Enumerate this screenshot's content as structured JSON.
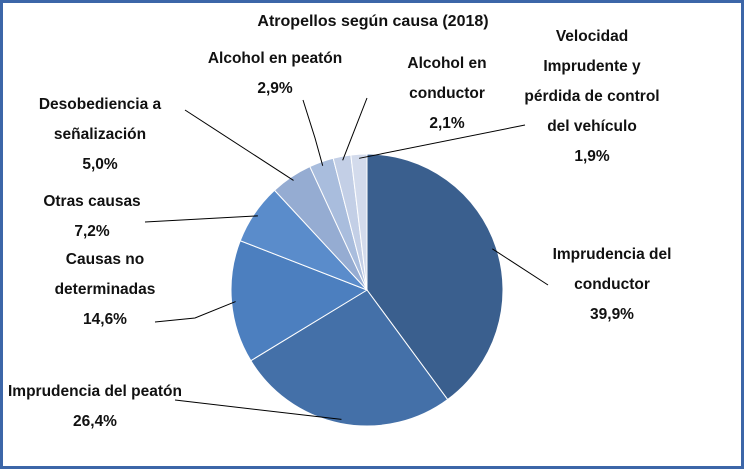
{
  "chart_data": {
    "type": "pie",
    "title": "Atropellos según causa (2018)",
    "categories": [
      "Imprudencia del conductor",
      "Imprudencia del peatón",
      "Causas no determinadas",
      "Otras causas",
      "Desobediencia a señalización",
      "Alcohol en peatón",
      "Alcohol en conductor",
      "Velocidad Imprudente y pérdida de control del vehículo"
    ],
    "values": [
      39.9,
      26.4,
      14.6,
      7.2,
      5.0,
      2.9,
      2.1,
      1.9
    ],
    "value_labels": [
      "39,9%",
      "26,4%",
      "14,6%",
      "7,2%",
      "5,0%",
      "2,9%",
      "2,1%",
      "1,9%"
    ],
    "colors": [
      "#3a5f8e",
      "#4470a8",
      "#4c7fbf",
      "#5a8ccb",
      "#95acd2",
      "#a9bddd",
      "#c3cfe6",
      "#d3dbec"
    ]
  }
}
